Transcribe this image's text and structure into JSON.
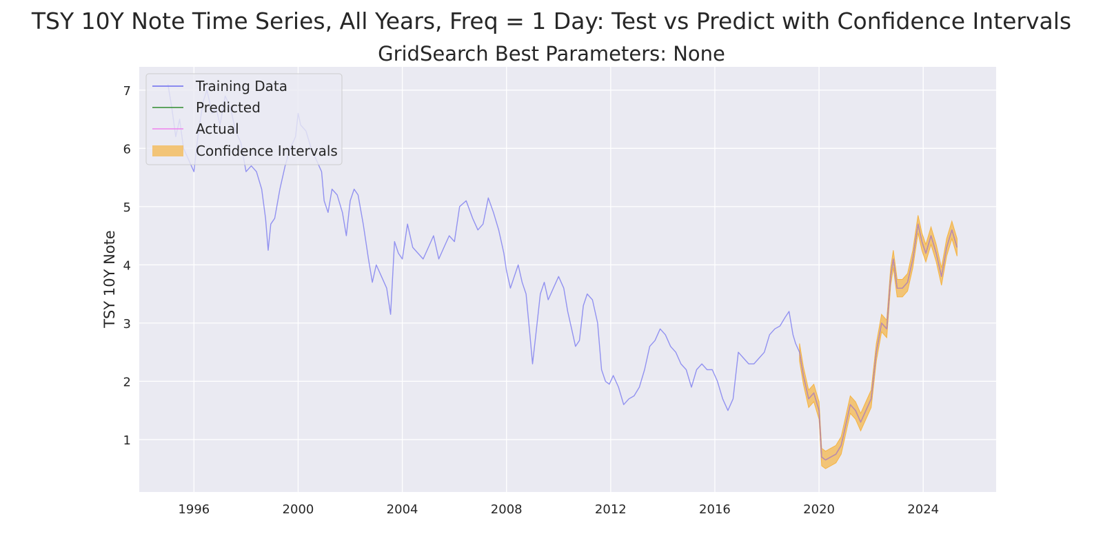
{
  "chart_data": {
    "type": "line",
    "title": "TSY 10Y Note Time Series, All Years, Freq = 1 Day: Test vs Predict with Confidence Intervals",
    "subtitle": "GridSearch Best Parameters: None",
    "xlabel": "",
    "ylabel": "TSY 10Y Note",
    "xlim": [
      1993.9,
      2026.8
    ],
    "ylim": [
      0.1,
      7.4
    ],
    "x_ticks": [
      1996,
      2000,
      2004,
      2008,
      2012,
      2016,
      2020,
      2024
    ],
    "x_tick_labels": [
      "1996",
      "2000",
      "2004",
      "2008",
      "2012",
      "2016",
      "2020",
      "2024"
    ],
    "y_ticks": [
      1,
      2,
      3,
      4,
      5,
      6,
      7
    ],
    "y_tick_labels": [
      "1",
      "2",
      "3",
      "4",
      "5",
      "6",
      "7"
    ],
    "grid": true,
    "legend_position": "top-left",
    "colors": {
      "background": "#eaeaf2",
      "grid": "#ffffff",
      "training": "#6b6bf0",
      "predicted": "#2e8b2e",
      "actual": "#ee82ee",
      "confidence": "#f5b342"
    },
    "series": [
      {
        "name": "Training Data",
        "style": "line",
        "color": "#6b6bf0",
        "x": [
          1995.0,
          1995.15,
          1995.3,
          1995.45,
          1995.6,
          1995.8,
          1996.0,
          1996.15,
          1996.35,
          1996.5,
          1996.7,
          1996.85,
          1997.0,
          1997.2,
          1997.4,
          1997.6,
          1997.8,
          1998.0,
          1998.2,
          1998.4,
          1998.6,
          1998.75,
          1998.85,
          1998.95,
          1999.1,
          1999.3,
          1999.5,
          1999.7,
          1999.9,
          2000.0,
          2000.1,
          2000.3,
          2000.5,
          2000.7,
          2000.9,
          2001.0,
          2001.15,
          2001.3,
          2001.5,
          2001.7,
          2001.85,
          2002.0,
          2002.15,
          2002.3,
          2002.5,
          2002.7,
          2002.85,
          2003.0,
          2003.2,
          2003.4,
          2003.55,
          2003.7,
          2003.85,
          2004.0,
          2004.2,
          2004.4,
          2004.6,
          2004.8,
          2005.0,
          2005.2,
          2005.4,
          2005.6,
          2005.8,
          2006.0,
          2006.2,
          2006.45,
          2006.7,
          2006.9,
          2007.1,
          2007.3,
          2007.5,
          2007.7,
          2007.9,
          2008.0,
          2008.15,
          2008.3,
          2008.45,
          2008.6,
          2008.75,
          2008.9,
          2009.0,
          2009.15,
          2009.3,
          2009.45,
          2009.6,
          2009.8,
          2010.0,
          2010.2,
          2010.35,
          2010.5,
          2010.65,
          2010.8,
          2010.95,
          2011.1,
          2011.3,
          2011.5,
          2011.65,
          2011.8,
          2011.95,
          2012.1,
          2012.3,
          2012.5,
          2012.7,
          2012.9,
          2013.1,
          2013.3,
          2013.5,
          2013.7,
          2013.9,
          2014.1,
          2014.3,
          2014.5,
          2014.7,
          2014.9,
          2015.1,
          2015.3,
          2015.5,
          2015.7,
          2015.9,
          2016.1,
          2016.3,
          2016.5,
          2016.7,
          2016.9,
          2017.1,
          2017.3,
          2017.5,
          2017.7,
          2017.9,
          2018.1,
          2018.3,
          2018.5,
          2018.7,
          2018.85,
          2019.0,
          2019.1,
          2019.25
        ],
        "y": [
          7.1,
          6.7,
          6.2,
          6.5,
          6.0,
          5.8,
          5.6,
          6.2,
          6.8,
          7.0,
          6.6,
          6.7,
          6.4,
          6.9,
          6.7,
          6.3,
          6.1,
          5.6,
          5.7,
          5.6,
          5.3,
          4.8,
          4.25,
          4.7,
          4.8,
          5.3,
          5.7,
          6.0,
          6.2,
          6.6,
          6.4,
          6.3,
          6.0,
          5.8,
          5.6,
          5.1,
          4.9,
          5.3,
          5.2,
          4.9,
          4.5,
          5.1,
          5.3,
          5.2,
          4.7,
          4.1,
          3.7,
          4.0,
          3.8,
          3.6,
          3.15,
          4.4,
          4.2,
          4.1,
          4.7,
          4.3,
          4.2,
          4.1,
          4.3,
          4.5,
          4.1,
          4.3,
          4.5,
          4.4,
          5.0,
          5.1,
          4.8,
          4.6,
          4.7,
          5.15,
          4.9,
          4.6,
          4.2,
          3.9,
          3.6,
          3.8,
          4.0,
          3.7,
          3.5,
          2.8,
          2.3,
          2.9,
          3.5,
          3.7,
          3.4,
          3.6,
          3.8,
          3.6,
          3.2,
          2.9,
          2.6,
          2.7,
          3.3,
          3.5,
          3.4,
          3.0,
          2.2,
          2.0,
          1.95,
          2.1,
          1.9,
          1.6,
          1.7,
          1.75,
          1.9,
          2.2,
          2.6,
          2.7,
          2.9,
          2.8,
          2.6,
          2.5,
          2.3,
          2.2,
          1.9,
          2.2,
          2.3,
          2.2,
          2.2,
          2.0,
          1.7,
          1.5,
          1.7,
          2.5,
          2.4,
          2.3,
          2.3,
          2.4,
          2.5,
          2.8,
          2.9,
          2.95,
          3.1,
          3.2,
          2.8,
          2.65,
          2.5
        ]
      },
      {
        "name": "Predicted",
        "style": "line",
        "color": "#2e8b2e",
        "x": [
          2019.25,
          2019.4,
          2019.6,
          2019.8,
          2020.0,
          2020.1,
          2020.25,
          2020.45,
          2020.65,
          2020.85,
          2021.0,
          2021.2,
          2021.4,
          2021.6,
          2021.8,
          2022.0,
          2022.2,
          2022.4,
          2022.6,
          2022.75,
          2022.85,
          2023.0,
          2023.2,
          2023.4,
          2023.6,
          2023.8,
          2023.95,
          2024.1,
          2024.3,
          2024.5,
          2024.7,
          2024.9,
          2025.1,
          2025.3
        ],
        "y": [
          2.5,
          2.1,
          1.7,
          1.8,
          1.5,
          0.7,
          0.65,
          0.7,
          0.75,
          0.9,
          1.2,
          1.6,
          1.5,
          1.3,
          1.5,
          1.7,
          2.5,
          3.0,
          2.9,
          3.8,
          4.1,
          3.6,
          3.6,
          3.7,
          4.1,
          4.7,
          4.4,
          4.2,
          4.5,
          4.2,
          3.8,
          4.3,
          4.6,
          4.3
        ]
      },
      {
        "name": "Actual",
        "style": "line",
        "color": "#ee82ee",
        "x": [
          2019.25,
          2019.4,
          2019.6,
          2019.8,
          2020.0,
          2020.1,
          2020.25,
          2020.45,
          2020.65,
          2020.85,
          2021.0,
          2021.2,
          2021.4,
          2021.6,
          2021.8,
          2022.0,
          2022.2,
          2022.4,
          2022.6,
          2022.75,
          2022.85,
          2023.0,
          2023.2,
          2023.4,
          2023.6,
          2023.8,
          2023.95,
          2024.1,
          2024.3,
          2024.5,
          2024.7,
          2024.9,
          2025.1,
          2025.3
        ],
        "y": [
          2.5,
          2.1,
          1.7,
          1.8,
          1.5,
          0.7,
          0.65,
          0.7,
          0.75,
          0.9,
          1.2,
          1.6,
          1.5,
          1.3,
          1.5,
          1.7,
          2.5,
          3.0,
          2.9,
          3.8,
          4.1,
          3.6,
          3.6,
          3.7,
          4.1,
          4.7,
          4.4,
          4.2,
          4.5,
          4.2,
          3.8,
          4.3,
          4.6,
          4.3
        ]
      },
      {
        "name": "Confidence Intervals",
        "style": "band",
        "color": "#f5b342",
        "x": [
          2019.25,
          2019.4,
          2019.6,
          2019.8,
          2020.0,
          2020.1,
          2020.25,
          2020.45,
          2020.65,
          2020.85,
          2021.0,
          2021.2,
          2021.4,
          2021.6,
          2021.8,
          2022.0,
          2022.2,
          2022.4,
          2022.6,
          2022.75,
          2022.85,
          2023.0,
          2023.2,
          2023.4,
          2023.6,
          2023.8,
          2023.95,
          2024.1,
          2024.3,
          2024.5,
          2024.7,
          2024.9,
          2025.1,
          2025.3
        ],
        "lower": [
          2.35,
          1.95,
          1.55,
          1.65,
          1.35,
          0.55,
          0.5,
          0.55,
          0.6,
          0.75,
          1.05,
          1.45,
          1.35,
          1.15,
          1.35,
          1.55,
          2.35,
          2.85,
          2.75,
          3.65,
          3.95,
          3.45,
          3.45,
          3.55,
          3.95,
          4.55,
          4.25,
          4.05,
          4.35,
          4.05,
          3.65,
          4.15,
          4.45,
          4.15
        ],
        "upper": [
          2.65,
          2.25,
          1.85,
          1.95,
          1.65,
          0.85,
          0.8,
          0.85,
          0.9,
          1.05,
          1.35,
          1.75,
          1.65,
          1.45,
          1.65,
          1.85,
          2.65,
          3.15,
          3.05,
          3.95,
          4.25,
          3.75,
          3.75,
          3.85,
          4.25,
          4.85,
          4.55,
          4.35,
          4.65,
          4.35,
          3.95,
          4.45,
          4.75,
          4.45
        ]
      }
    ]
  }
}
